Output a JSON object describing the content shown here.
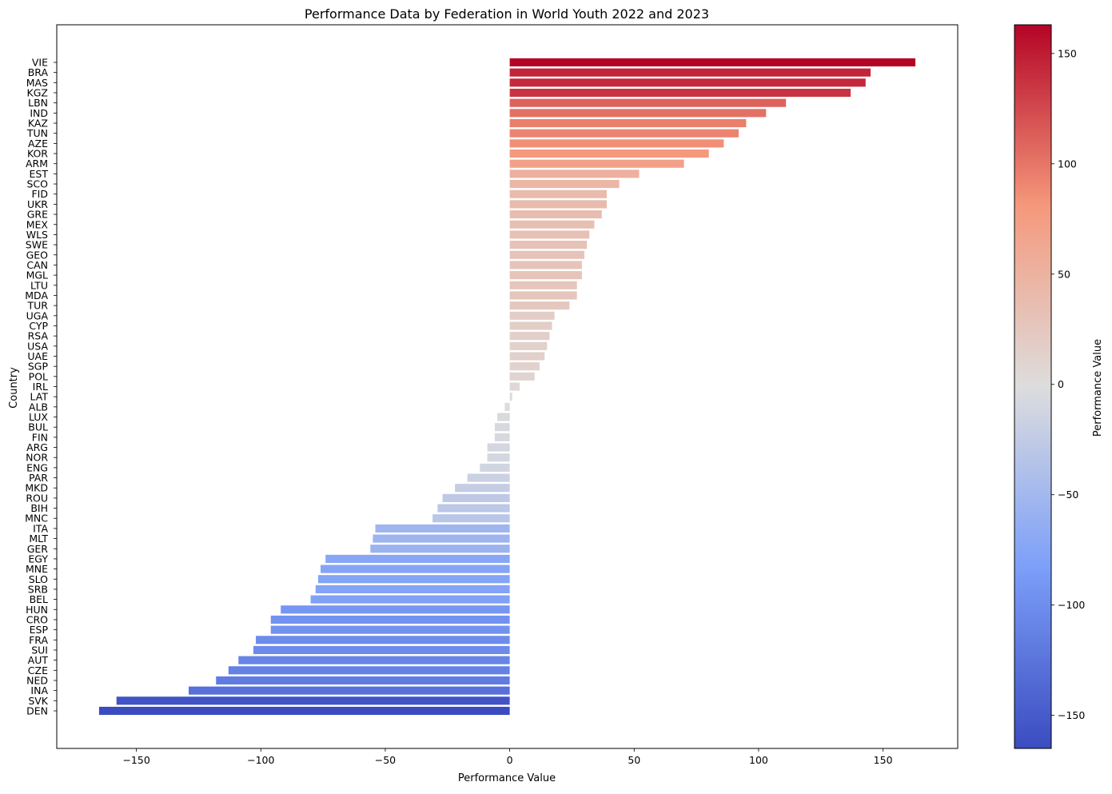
{
  "chart_data": {
    "type": "bar",
    "orientation": "horizontal",
    "title": "Performance Data by Federation in World Youth 2022 and 2023",
    "xlabel": "Performance Value",
    "ylabel": "Country",
    "xlim": [
      -182,
      180
    ],
    "xticks": [
      -150,
      -100,
      -50,
      0,
      50,
      100,
      150
    ],
    "grid": false,
    "colormap": "coolwarm",
    "colorbar": {
      "label": "Performance Value",
      "range": [
        -165,
        163
      ],
      "ticks": [
        -150,
        -100,
        -50,
        0,
        50,
        100,
        150
      ]
    },
    "categories": [
      "VIE",
      "BRA",
      "MAS",
      "KGZ",
      "LBN",
      "IND",
      "KAZ",
      "TUN",
      "AZE",
      "KOR",
      "ARM",
      "EST",
      "SCO",
      "FID",
      "UKR",
      "GRE",
      "MEX",
      "WLS",
      "SWE",
      "GEO",
      "CAN",
      "MGL",
      "LTU",
      "MDA",
      "TUR",
      "UGA",
      "CYP",
      "RSA",
      "USA",
      "UAE",
      "SGP",
      "POL",
      "IRL",
      "LAT",
      "ALB",
      "LUX",
      "BUL",
      "FIN",
      "ARG",
      "NOR",
      "ENG",
      "PAR",
      "MKD",
      "ROU",
      "BIH",
      "MNC",
      "ITA",
      "MLT",
      "GER",
      "EGY",
      "MNE",
      "SLO",
      "SRB",
      "BEL",
      "HUN",
      "CRO",
      "ESP",
      "FRA",
      "SUI",
      "AUT",
      "CZE",
      "NED",
      "INA",
      "SVK",
      "DEN"
    ],
    "values": [
      163,
      145,
      143,
      137,
      111,
      103,
      95,
      92,
      86,
      80,
      70,
      52,
      44,
      39,
      39,
      37,
      34,
      32,
      31,
      30,
      29,
      29,
      27,
      27,
      24,
      18,
      17,
      16,
      15,
      14,
      12,
      10,
      4,
      1,
      -2,
      -5,
      -6,
      -6,
      -9,
      -9,
      -12,
      -17,
      -22,
      -27,
      -29,
      -31,
      -54,
      -55,
      -56,
      -74,
      -76,
      -77,
      -78,
      -80,
      -92,
      -96,
      -96,
      -102,
      -103,
      -109,
      -113,
      -118,
      -129,
      -158,
      -165
    ]
  }
}
